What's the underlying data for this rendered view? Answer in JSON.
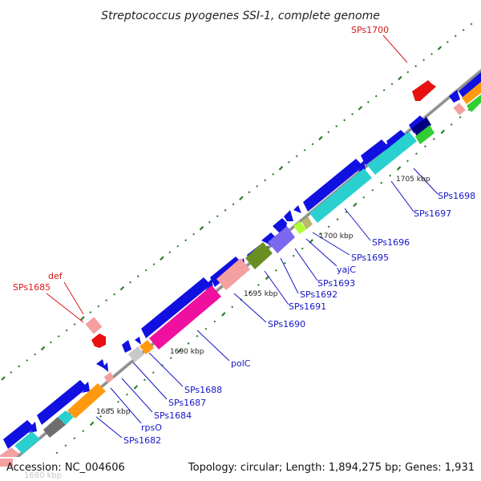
{
  "title": "Streptococcus pyogenes SSI-1, complete genome",
  "accession": "Accession: NC_004606",
  "topology": "Topology: circular; Length: 1,894,275 bp; Genes: 1,931",
  "faint_tick": "1680 kbp",
  "kbp_labels": {
    "k1685": "1685 kbp",
    "k1690": "1690 kbp",
    "k1695": "1695 kbp",
    "k1700": "1700 kbp",
    "k1705": "1705 kbp"
  },
  "gene_labels": {
    "SPs1682": "SPs1682",
    "rpsO": "rpsO",
    "SPs1684": "SPs1684",
    "SPs1687": "SPs1687",
    "SPs1688": "SPs1688",
    "polC": "polC",
    "SPs1690": "SPs1690",
    "SPs1691": "SPs1691",
    "SPs1692": "SPs1692",
    "SPs1693": "SPs1693",
    "yajC": "yajC",
    "SPs1695": "SPs1695",
    "SPs1696": "SPs1696",
    "SPs1697": "SPs1697",
    "SPs1698": "SPs1698",
    "def": "def",
    "SPs1685": "SPs1685",
    "SPs1700": "SPs1700"
  },
  "colors": {
    "forward_gene": "#1010e0",
    "reverse_gene": "#e81010",
    "backbone": "#8c8c8c",
    "tick_green": "#2e7d2e",
    "label_blue": "#1515c8",
    "label_red": "#d81818"
  }
}
